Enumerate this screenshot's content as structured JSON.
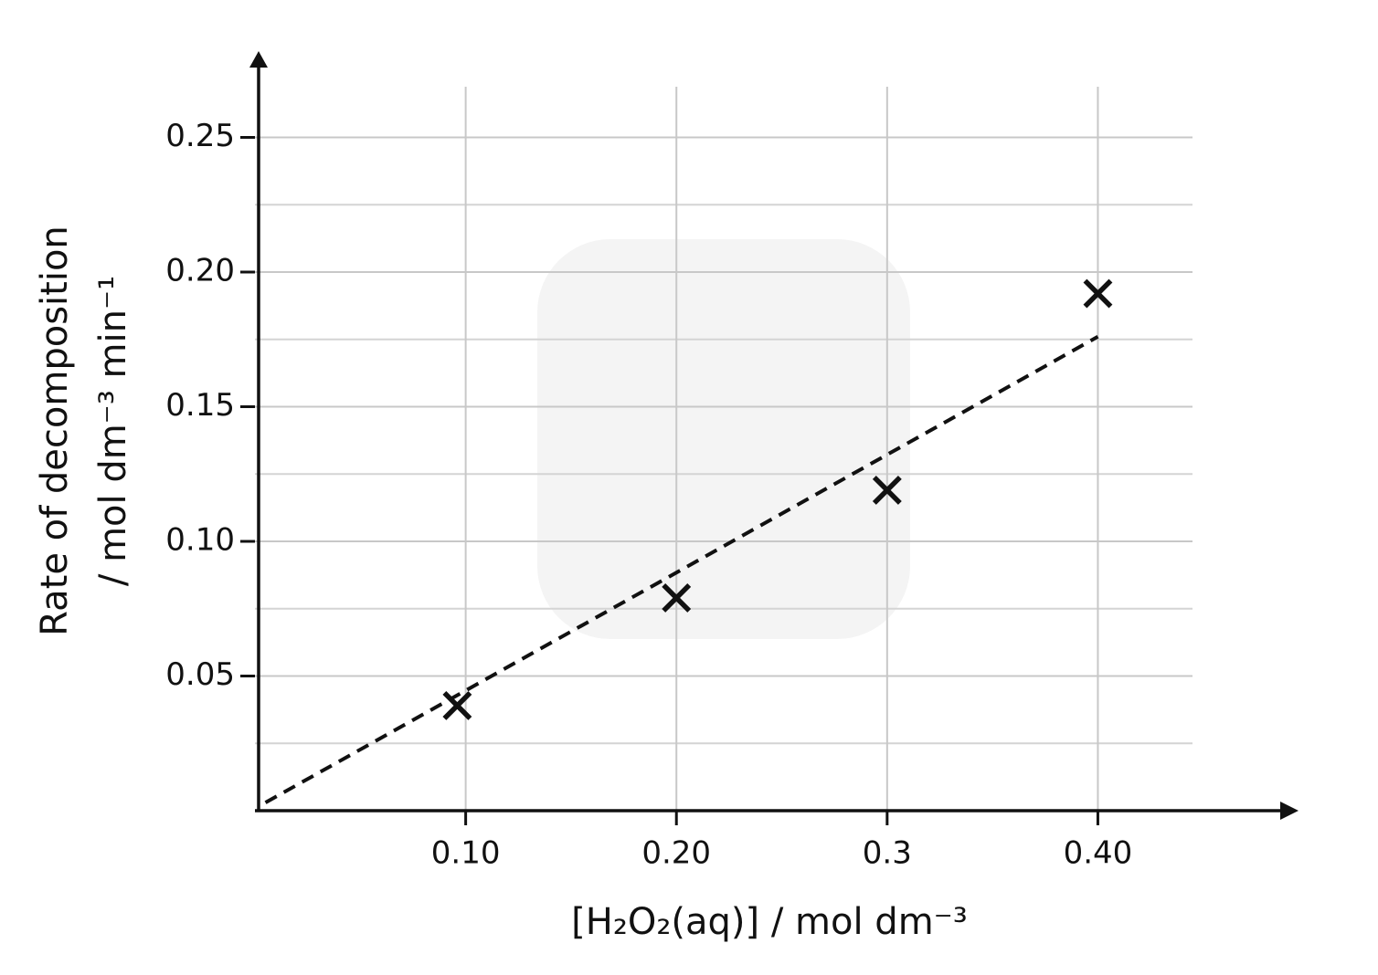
{
  "chart_data": {
    "type": "scatter",
    "x_label": "[H₂O₂(aq)] / mol dm⁻³",
    "y_label": [
      "Rate of decomposition",
      "/ mol dm⁻³ min⁻¹"
    ],
    "x": [
      0.096,
      0.2,
      0.3,
      0.4
    ],
    "values": [
      0.039,
      0.079,
      0.119,
      0.192
    ],
    "color": "#111111",
    "trendline": {
      "x": [
        0.005,
        0.4
      ],
      "values": [
        0.003,
        0.176
      ],
      "dashed": true
    },
    "xlim": [
      0,
      0.49
    ],
    "ylim": [
      0,
      0.28
    ],
    "xticks": [
      {
        "value": 0.1,
        "label": "0.10"
      },
      {
        "value": 0.2,
        "label": "0.20"
      },
      0.3,
      {
        "value": 0.4,
        "label": "0.40"
      }
    ],
    "yticks": [
      0.05,
      {
        "value": 0.1,
        "label": "0.10"
      },
      0.15,
      {
        "value": 0.2,
        "label": "0.20"
      },
      0.25
    ],
    "minor_yticks": [
      0.025,
      0.075,
      0.125,
      0.175,
      0.225
    ],
    "grid": true
  }
}
